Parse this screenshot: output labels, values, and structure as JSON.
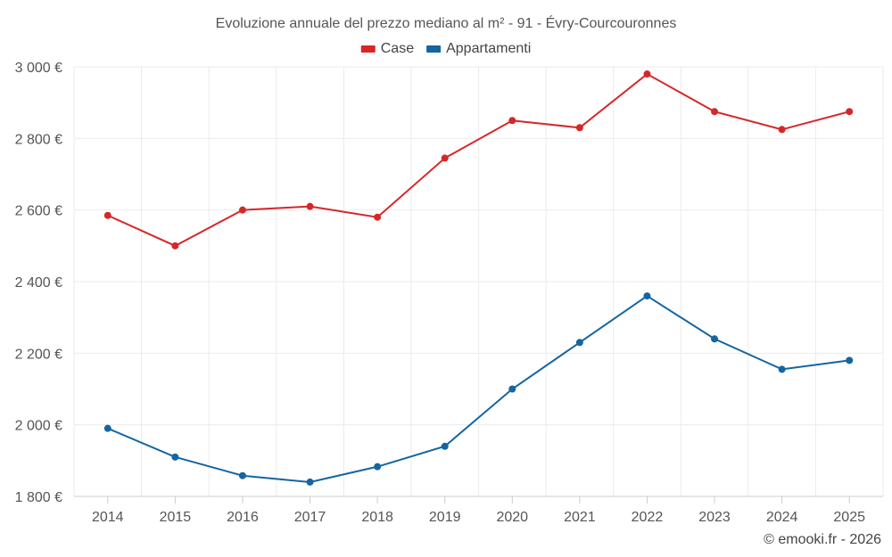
{
  "chart_data": {
    "type": "line",
    "title": "Evoluzione annuale del prezzo mediano al m² - 91 - Évry-Courcouronnes",
    "xlabel": "",
    "ylabel": "",
    "categories": [
      "2014",
      "2015",
      "2016",
      "2017",
      "2018",
      "2019",
      "2020",
      "2021",
      "2022",
      "2023",
      "2024",
      "2025"
    ],
    "ylim": [
      1800,
      3000
    ],
    "y_ticks": [
      1800,
      2000,
      2200,
      2400,
      2600,
      2800,
      3000
    ],
    "y_tick_labels": [
      "1 800 €",
      "2 000 €",
      "2 200 €",
      "2 400 €",
      "2 600 €",
      "2 800 €",
      "3 000 €"
    ],
    "grid": true,
    "legend_position": "top-center",
    "series": [
      {
        "name": "Case",
        "color": "#d62728",
        "values": [
          2585,
          2500,
          2600,
          2610,
          2580,
          2745,
          2850,
          2830,
          2980,
          2875,
          2825,
          2875
        ]
      },
      {
        "name": "Appartamenti",
        "color": "#1565a0",
        "values": [
          1990,
          1910,
          1858,
          1840,
          1883,
          1940,
          2100,
          2230,
          2360,
          2240,
          2155,
          2180
        ]
      }
    ]
  },
  "copyright": "© emooki.fr - 2026"
}
